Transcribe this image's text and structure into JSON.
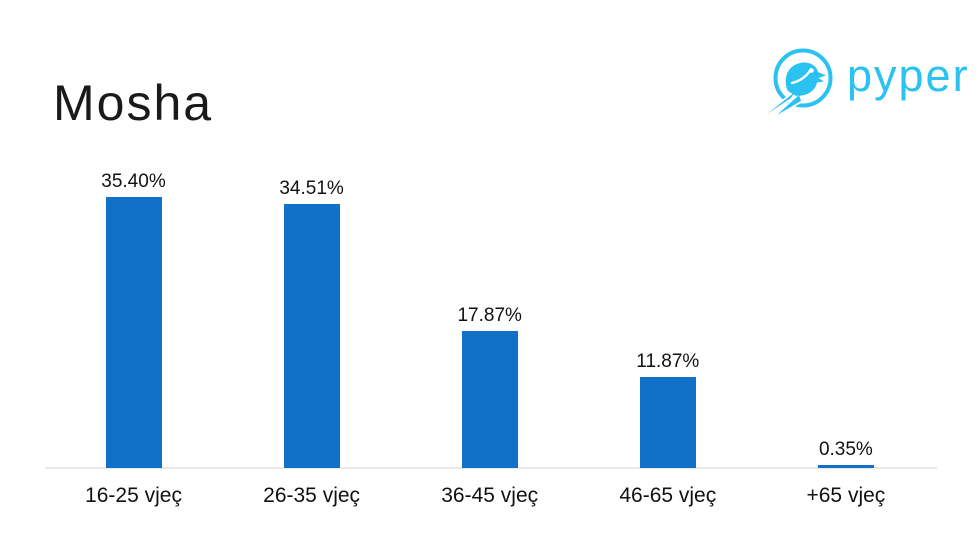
{
  "title": "Mosha",
  "logo": {
    "text": "pyper",
    "mark": "bird-in-circle-icon",
    "color": "#29c2f1"
  },
  "chart_data": {
    "type": "bar",
    "title": "Mosha",
    "categories": [
      "16-25 vjeç",
      "26-35 vjeç",
      "36-45 vjeç",
      "46-65 vjeç",
      "+65 vjeç"
    ],
    "values": [
      35.4,
      34.51,
      17.87,
      11.87,
      0.35
    ],
    "data_labels": [
      "35.40%",
      "34.51%",
      "17.87%",
      "11.87%",
      "0.35%"
    ],
    "unit": "%",
    "bar_color": "#1170c8",
    "axis_line_color": "#e8e8e8",
    "label_color": "#111111",
    "ylim": [
      0,
      38
    ],
    "grid": false,
    "legend": false,
    "xlabel": "",
    "ylabel": ""
  }
}
